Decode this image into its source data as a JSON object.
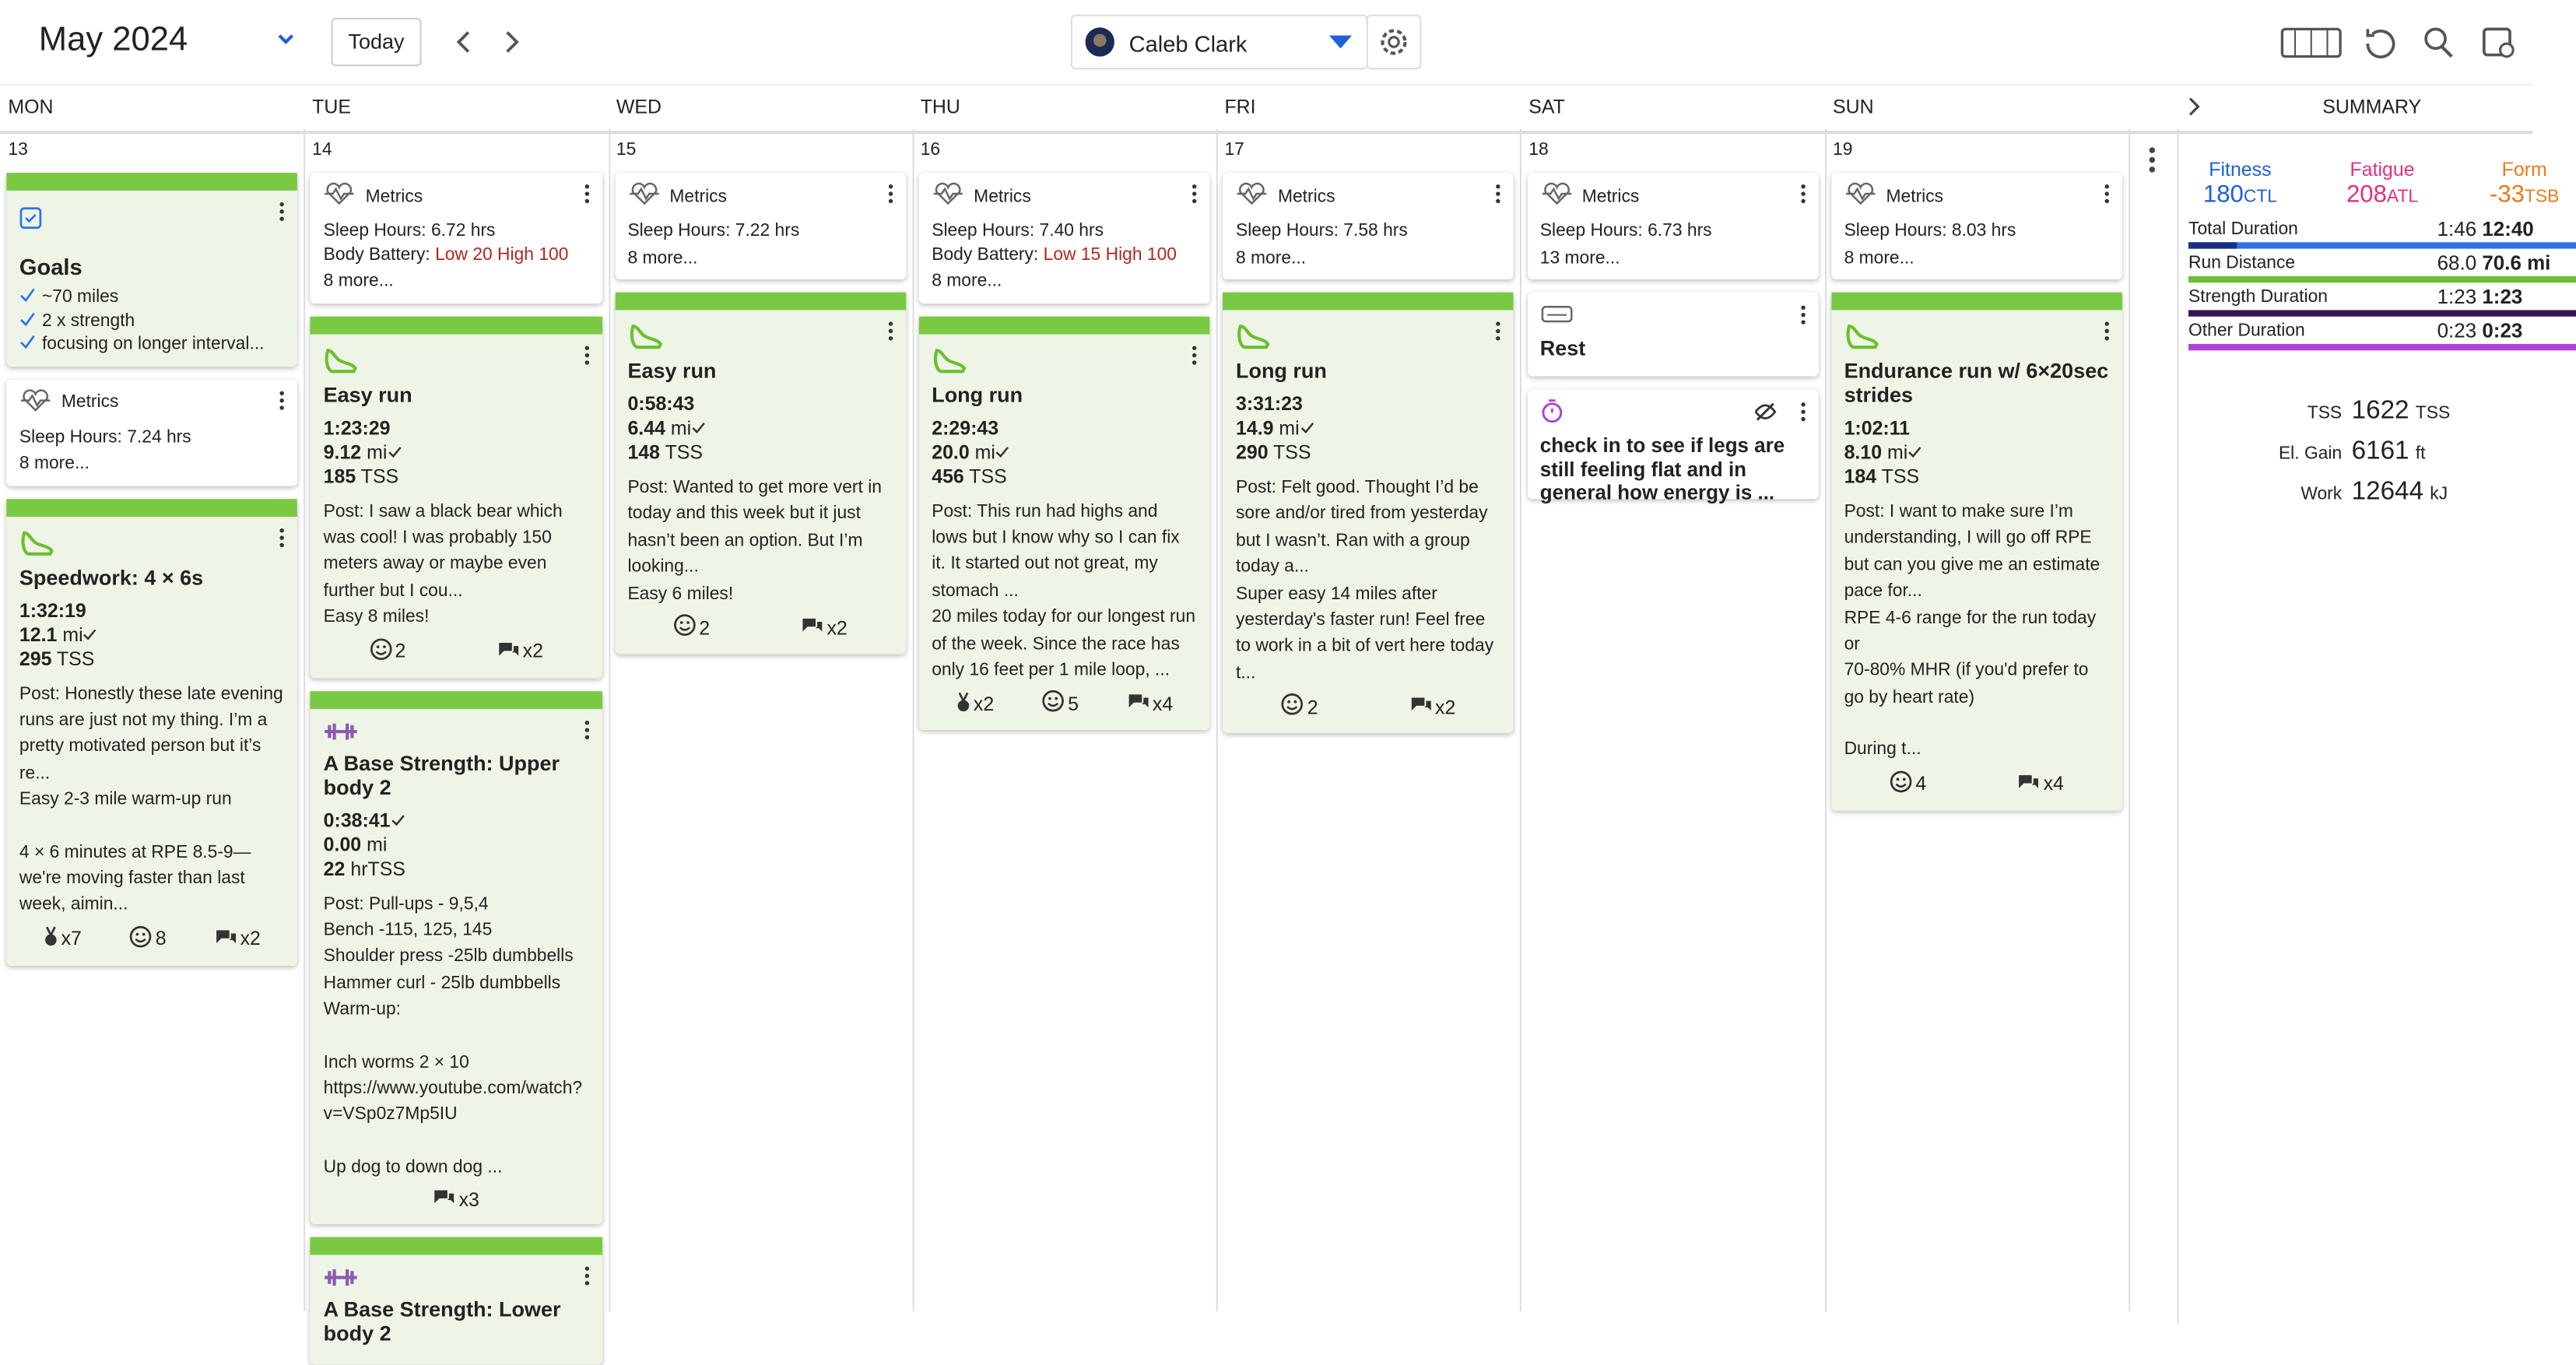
{
  "header": {
    "month": "May 2024",
    "today": "Today",
    "athlete": "Caleb Clark"
  },
  "days": [
    {
      "name": "MON",
      "date": "13",
      "cards": [
        {
          "kind": "goals",
          "title": "Goals",
          "items": [
            "~70 miles",
            "2 x strength",
            "focusing on longer interval..."
          ]
        },
        {
          "kind": "metrics",
          "title": "Metrics",
          "sleep": "Sleep Hours: 7.24 hrs",
          "more": "8 more..."
        },
        {
          "kind": "workout",
          "sport": "run",
          "title": "Speedwork: 4 × 6s",
          "duration": "1:32:19",
          "distance": "12.1",
          "distance_unit": "mi",
          "tss": "295",
          "tss_unit": "TSS",
          "text": [
            [
              "Post: Honestly these late evening runs are just not my thing. I’m a pretty motivated person but it’s re...",
              "Easy 2-3 mile warm-up run"
            ],
            [
              "4 × 6 minutes at RPE 8.5-9—we're moving faster than last week, aimin..."
            ]
          ],
          "footer": {
            "pr": "x7",
            "likes": "8",
            "comments": "x2"
          }
        }
      ]
    },
    {
      "name": "TUE",
      "date": "14",
      "cards": [
        {
          "kind": "metrics",
          "title": "Metrics",
          "sleep": "Sleep Hours: 6.72 hrs",
          "battery_label": "Body Battery:",
          "battery": "Low 20 High 100",
          "more": "8 more..."
        },
        {
          "kind": "workout",
          "sport": "run",
          "title": "Easy run",
          "duration": "1:23:29",
          "distance": "9.12",
          "distance_unit": "mi",
          "tss": "185",
          "tss_unit": "TSS",
          "text": [
            [
              "Post: I saw a black bear which was cool! I was probably 150 meters away or maybe even further but I cou...",
              "Easy 8 miles!"
            ]
          ],
          "footer": {
            "likes": "2",
            "comments": "x2"
          }
        },
        {
          "kind": "workout",
          "sport": "strength",
          "title": "A Base Strength: Upper body 2",
          "duration": "0:38:41",
          "distance": "0.00",
          "distance_unit": "mi",
          "tss": "22",
          "tss_unit": "hrTSS",
          "text": [
            [
              "Post: Pull-ups - 9,5,4",
              "Bench -115, 125, 145",
              "Shoulder press -25lb dumbbells",
              "Hammer curl - 25lb dumbbells",
              "Warm-up:"
            ],
            [
              "Inch worms 2 × 10",
              "https://www.youtube.com/watch?v=VSp0z7Mp5IU"
            ],
            [
              "Up dog to down dog ..."
            ]
          ],
          "footer": {
            "comments": "x3"
          }
        },
        {
          "kind": "workout",
          "sport": "strength",
          "title": "A Base Strength: Lower body 2"
        }
      ]
    },
    {
      "name": "WED",
      "date": "15",
      "cards": [
        {
          "kind": "metrics",
          "title": "Metrics",
          "sleep": "Sleep Hours: 7.22 hrs",
          "more": "8 more..."
        },
        {
          "kind": "workout",
          "sport": "run",
          "title": "Easy run",
          "duration": "0:58:43",
          "distance": "6.44",
          "distance_unit": "mi",
          "tss": "148",
          "tss_unit": "TSS",
          "text": [
            [
              "Post: Wanted to get more vert in today and this week but it just hasn’t been an option. But I’m looking...",
              "Easy 6 miles!"
            ]
          ],
          "footer": {
            "likes": "2",
            "comments": "x2"
          }
        }
      ]
    },
    {
      "name": "THU",
      "date": "16",
      "cards": [
        {
          "kind": "metrics",
          "title": "Metrics",
          "sleep": "Sleep Hours: 7.40 hrs",
          "battery_label": "Body Battery:",
          "battery": "Low 15 High 100",
          "more": "8 more..."
        },
        {
          "kind": "workout",
          "sport": "run",
          "title": "Long run",
          "duration": "2:29:43",
          "distance": "20.0",
          "distance_unit": "mi",
          "tss": "456",
          "tss_unit": "TSS",
          "text": [
            [
              "Post: This run had highs and lows but I know why so I can fix it. It started out not great, my stomach ...",
              "20 miles today for our longest run of the week. Since the race has only 16 feet per 1 mile loop, ..."
            ]
          ],
          "footer": {
            "pr": "x2",
            "likes": "5",
            "comments": "x4"
          }
        }
      ]
    },
    {
      "name": "FRI",
      "date": "17",
      "cards": [
        {
          "kind": "metrics",
          "title": "Metrics",
          "sleep": "Sleep Hours: 7.58 hrs",
          "more": "8 more..."
        },
        {
          "kind": "workout",
          "sport": "run",
          "title": "Long run",
          "duration": "3:31:23",
          "distance": "14.9",
          "distance_unit": "mi",
          "tss": "290",
          "tss_unit": "TSS",
          "text": [
            [
              "Post: Felt good. Thought I’d be sore and/or tired from yesterday but I wasn’t. Ran with a group today a...",
              "Super easy 14 miles after yesterday's faster run! Feel free to work in a bit of vert here today t..."
            ]
          ],
          "footer": {
            "likes": "2",
            "comments": "x2"
          }
        }
      ]
    },
    {
      "name": "SAT",
      "date": "18",
      "cards": [
        {
          "kind": "metrics",
          "title": "Metrics",
          "sleep": "Sleep Hours: 6.73 hrs",
          "more": "13 more..."
        },
        {
          "kind": "rest",
          "title": "Rest"
        },
        {
          "kind": "note",
          "title": "check in to see if legs are still feeling flat and in general how energy is ..."
        }
      ]
    },
    {
      "name": "SUN",
      "date": "19",
      "cards": [
        {
          "kind": "metrics",
          "title": "Metrics",
          "sleep": "Sleep Hours: 8.03 hrs",
          "more": "8 more..."
        },
        {
          "kind": "workout",
          "sport": "run",
          "title": "Endurance run w/ 6×20sec strides",
          "duration": "1:02:11",
          "distance": "8.10",
          "distance_unit": "mi",
          "tss": "184",
          "tss_unit": "TSS",
          "text": [
            [
              "Post: I want to make sure I’m understanding, I will go off RPE but can you give me an estimate pace for...",
              "RPE 4-6 range for the run today",
              "or",
              "70-80% MHR (if you'd prefer to go by heart rate)"
            ],
            [
              "During t..."
            ]
          ],
          "footer": {
            "likes": "4",
            "comments": "x4"
          }
        }
      ]
    }
  ],
  "summary": {
    "title": "SUMMARY",
    "gauges": [
      {
        "label": "Fitness",
        "value": "180",
        "unit": "CTL",
        "color": "#1f5fd8"
      },
      {
        "label": "Fatigue",
        "value": "208",
        "unit": "ATL",
        "color": "#e0317d"
      },
      {
        "label": "Form",
        "value": "-33",
        "unit": "TSB",
        "color": "#f07a1a"
      }
    ],
    "rows": [
      {
        "label": "Total Duration",
        "planned": "1:46",
        "done": "12:40",
        "color": "#2f72e8"
      },
      {
        "label": "Run Distance",
        "planned": "68.0",
        "done": "70.6 mi",
        "color": "#6dbd3a"
      },
      {
        "label": "Strength Duration",
        "planned": "1:23",
        "done": "1:23",
        "color": "#3a1450"
      },
      {
        "label": "Other Duration",
        "planned": "0:23",
        "done": "0:23",
        "color": "#b040d8"
      }
    ],
    "totals": [
      {
        "label": "TSS",
        "value": "1622",
        "unit": "TSS"
      },
      {
        "label": "El. Gain",
        "value": "6161",
        "unit": "ft"
      },
      {
        "label": "Work",
        "value": "12644",
        "unit": "kJ"
      }
    ]
  }
}
